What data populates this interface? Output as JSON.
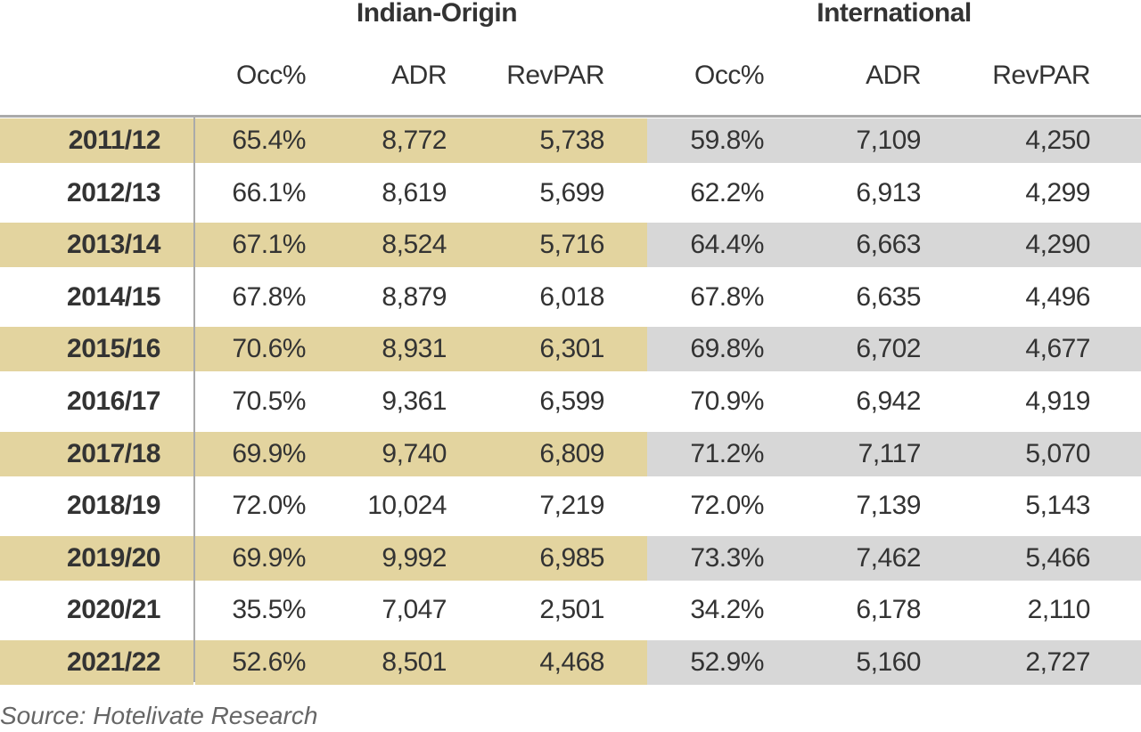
{
  "header": {
    "groups": [
      "Indian-Origin",
      "International"
    ],
    "columns": [
      "Occ%",
      "ADR",
      "RevPAR",
      "Occ%",
      "ADR",
      "RevPAR"
    ]
  },
  "table": {
    "rows": [
      [
        "2011/12",
        "65.4%",
        "8,772",
        "5,738",
        "59.8%",
        "7,109",
        "4,250"
      ],
      [
        "2012/13",
        "66.1%",
        "8,619",
        "5,699",
        "62.2%",
        "6,913",
        "4,299"
      ],
      [
        "2013/14",
        "67.1%",
        "8,524",
        "5,716",
        "64.4%",
        "6,663",
        "4,290"
      ],
      [
        "2014/15",
        "67.8%",
        "8,879",
        "6,018",
        "67.8%",
        "6,635",
        "4,496"
      ],
      [
        "2015/16",
        "70.6%",
        "8,931",
        "6,301",
        "69.8%",
        "6,702",
        "4,677"
      ],
      [
        "2016/17",
        "70.5%",
        "9,361",
        "6,599",
        "70.9%",
        "6,942",
        "4,919"
      ],
      [
        "2017/18",
        "69.9%",
        "9,740",
        "6,809",
        "71.2%",
        "7,117",
        "5,070"
      ],
      [
        "2018/19",
        "72.0%",
        "10,024",
        "7,219",
        "72.0%",
        "7,139",
        "5,143"
      ],
      [
        "2019/20",
        "69.9%",
        "9,992",
        "6,985",
        "73.3%",
        "7,462",
        "5,466"
      ],
      [
        "2020/21",
        "35.5%",
        "7,047",
        "2,501",
        "34.2%",
        "6,178",
        "2,110"
      ],
      [
        "2021/22",
        "52.6%",
        "8,501",
        "4,468",
        "52.9%",
        "5,160",
        "2,727"
      ]
    ]
  },
  "footer": {
    "source": "Source: Hotelivate Research"
  }
}
